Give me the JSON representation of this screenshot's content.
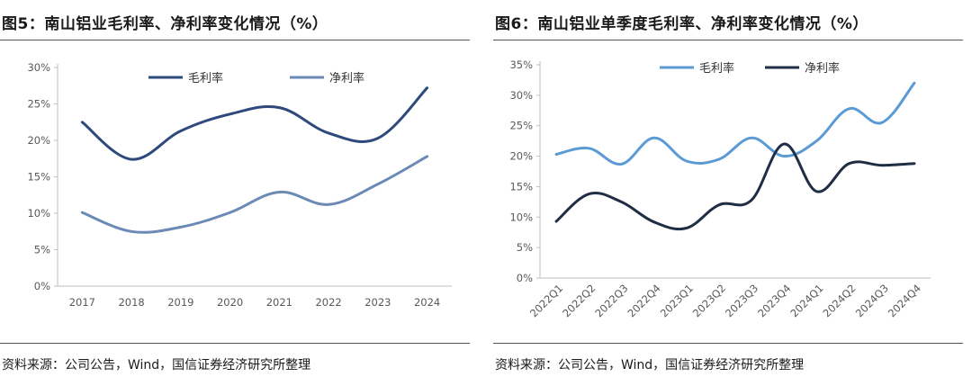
{
  "charts": [
    {
      "id": "left",
      "figure_title": "图5：南山铝业毛利率、净利率变化情况（%）",
      "source": "资料来源：公司公告，Wind，国信证券经济研究所整理",
      "chart_data": {
        "type": "line",
        "categories": [
          "2017",
          "2018",
          "2019",
          "2020",
          "2021",
          "2022",
          "2023",
          "2024"
        ],
        "series": [
          {
            "name": "毛利率",
            "values": [
              22.5,
              17.4,
              21.3,
              23.6,
              24.5,
              21.0,
              20.3,
              27.2
            ],
            "color": "#2e4a7d"
          },
          {
            "name": "净利率",
            "values": [
              10.1,
              7.5,
              8.1,
              10.1,
              12.9,
              11.2,
              14.0,
              17.8
            ],
            "color": "#6b8ab5"
          }
        ],
        "yticks": [
          "0%",
          "5%",
          "10%",
          "15%",
          "20%",
          "25%",
          "30%"
        ],
        "ylim": [
          0,
          30
        ],
        "legend_position": "top"
      }
    },
    {
      "id": "right",
      "figure_title": "图6：南山铝业单季度毛利率、净利率变化情况（%）",
      "source": "资料来源：公司公告，Wind，国信证券经济研究所整理",
      "chart_data": {
        "type": "line",
        "categories": [
          "2022Q1",
          "2022Q2",
          "2022Q3",
          "2022Q4",
          "2023Q1",
          "2023Q2",
          "2023Q3",
          "2023Q4",
          "2024Q1",
          "2024Q2",
          "2024Q3",
          "2024Q4"
        ],
        "series": [
          {
            "name": "毛利率",
            "values": [
              20.3,
              21.3,
              18.7,
              23.0,
              19.2,
              19.5,
              23.0,
              20.0,
              22.5,
              27.8,
              25.5,
              32.0
            ],
            "color": "#5b9bd5"
          },
          {
            "name": "净利率",
            "values": [
              9.3,
              13.8,
              12.5,
              9.2,
              8.2,
              12.0,
              12.8,
              22.0,
              14.2,
              18.8,
              18.5,
              18.8
            ],
            "color": "#1f2d45"
          }
        ],
        "yticks": [
          "0%",
          "5%",
          "10%",
          "15%",
          "20%",
          "25%",
          "30%",
          "35%"
        ],
        "ylim": [
          0,
          35
        ],
        "legend_position": "top"
      }
    }
  ]
}
